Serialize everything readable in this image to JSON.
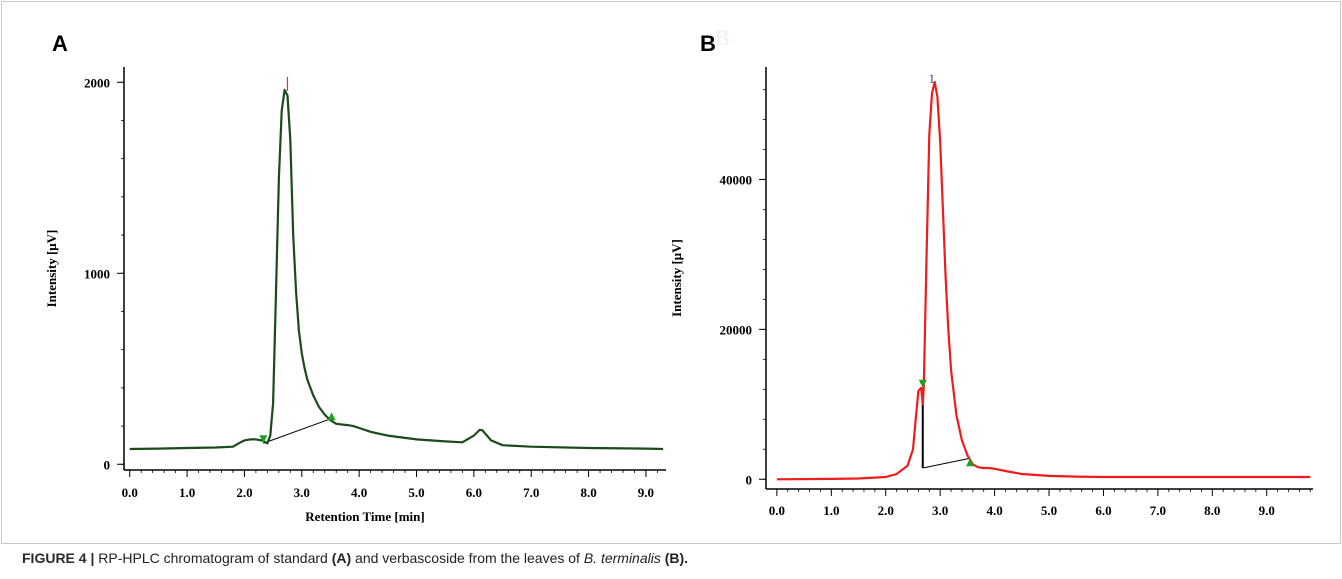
{
  "caption": {
    "figure_label": "FIGURE 4 |",
    "text_1": " RP-HPLC chromatogram of standard ",
    "panel_a_ref": "(A)",
    "text_2": " and verbascoside from the leaves of ",
    "species": "B. terminalis",
    "text_3": " ",
    "panel_b_ref": "(B)."
  },
  "chart_data": [
    {
      "panel": "A",
      "type": "line",
      "title": "",
      "xlabel": "Retention Time [min]",
      "ylabel": "Intensity [μV]",
      "xlim": [
        -0.1,
        9.35
      ],
      "ylim": [
        -30,
        2080
      ],
      "x_ticks": [
        "0.0",
        "1.0",
        "2.0",
        "3.0",
        "4.0",
        "5.0",
        "6.0",
        "7.0",
        "8.0",
        "9.0"
      ],
      "y_ticks": [
        "0",
        "1000",
        "2000"
      ],
      "colors": {
        "trace": "#1b4a1b",
        "peak_marker": "#e53030",
        "baseline": "#000000",
        "markers": "#1f9e1f"
      },
      "series": [
        {
          "x": [
            0.0,
            0.5,
            1.0,
            1.5,
            1.8,
            1.9,
            2.0,
            2.1,
            2.2,
            2.3,
            2.4,
            2.45,
            2.5,
            2.55,
            2.6,
            2.65,
            2.7,
            2.75,
            2.8,
            2.85,
            2.9,
            2.95,
            3.0,
            3.05,
            3.1,
            3.2,
            3.3,
            3.4,
            3.5,
            3.6,
            3.7,
            3.8,
            3.9,
            4.0,
            4.2,
            4.5,
            5.0,
            5.5,
            5.8,
            6.0,
            6.1,
            6.15,
            6.2,
            6.3,
            6.5,
            7.0,
            8.0,
            9.0,
            9.3
          ],
          "y": [
            80,
            82,
            85,
            88,
            92,
            110,
            125,
            130,
            130,
            125,
            110,
            150,
            320,
            900,
            1500,
            1850,
            1960,
            1930,
            1700,
            1200,
            900,
            700,
            580,
            500,
            440,
            360,
            300,
            260,
            230,
            212,
            208,
            205,
            200,
            190,
            170,
            150,
            130,
            120,
            115,
            150,
            180,
            178,
            160,
            125,
            100,
            92,
            85,
            82,
            80
          ]
        }
      ],
      "baseline": {
        "x": [
          2.33,
          3.52
        ],
        "y": [
          110,
          240
        ]
      },
      "markers": [
        {
          "x": 2.33,
          "y": 110,
          "dir": "down"
        },
        {
          "x": 3.52,
          "y": 240,
          "dir": "up"
        }
      ],
      "peak_top_x": 2.75
    },
    {
      "panel": "B",
      "type": "line",
      "title": "",
      "ghost_label": "B",
      "xlabel": "",
      "ylabel": "Intensity [μV]",
      "xlim": [
        -0.2,
        9.85
      ],
      "ylim": [
        -1300,
        55000
      ],
      "x_ticks": [
        "0.0",
        "1.0",
        "2.0",
        "3.0",
        "4.0",
        "5.0",
        "6.0",
        "7.0",
        "8.0",
        "9.0"
      ],
      "y_ticks": [
        "0",
        "20000",
        "40000"
      ],
      "peak_label": "1",
      "colors": {
        "trace": "#ee1c1c",
        "baseline": "#000000",
        "markers": "#1f9e1f"
      },
      "series": [
        {
          "x": [
            0.0,
            1.0,
            1.5,
            2.0,
            2.2,
            2.4,
            2.5,
            2.55,
            2.6,
            2.65,
            2.68,
            2.7,
            2.75,
            2.8,
            2.85,
            2.9,
            2.95,
            3.0,
            3.05,
            3.1,
            3.15,
            3.2,
            3.3,
            3.4,
            3.5,
            3.6,
            3.7,
            3.8,
            3.9,
            4.0,
            4.2,
            4.5,
            5.0,
            5.5,
            6.0,
            7.0,
            8.0,
            9.0,
            9.8
          ],
          "y": [
            0,
            50,
            100,
            300,
            700,
            1800,
            4000,
            8000,
            11800,
            12200,
            10000,
            12500,
            30000,
            46000,
            51500,
            53000,
            51000,
            45000,
            36000,
            27000,
            20000,
            14500,
            8500,
            5200,
            3200,
            2000,
            1600,
            1500,
            1500,
            1400,
            1100,
            700,
            450,
            350,
            300,
            300,
            300,
            300,
            300
          ]
        }
      ],
      "baseline": {
        "x": [
          2.68,
          3.55
        ],
        "y": [
          1500,
          2800
        ]
      },
      "drop_line": {
        "x": 2.68,
        "y_from": 1500,
        "y_to": 12200
      },
      "markers": [
        {
          "x": 2.68,
          "y": 12200,
          "dir": "down"
        },
        {
          "x": 3.55,
          "y": 2000,
          "dir": "up"
        }
      ],
      "peak_top_x": 2.9
    }
  ]
}
